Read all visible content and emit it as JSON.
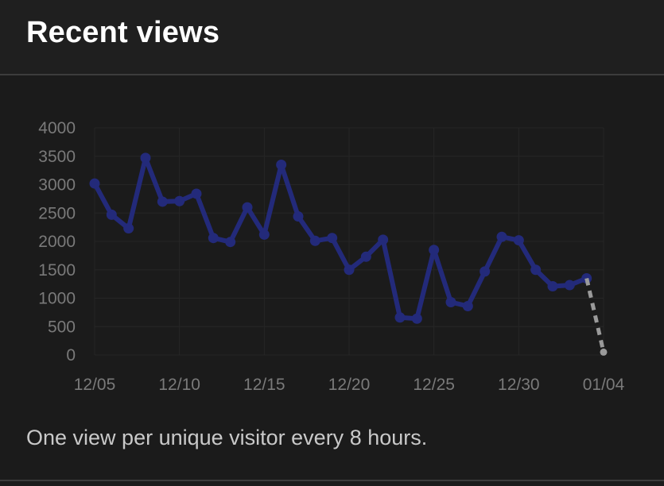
{
  "header": {
    "title": "Recent views"
  },
  "footer": {
    "note": "One view per unique visitor every 8 hours."
  },
  "colors": {
    "line": "#232a7a",
    "projection": "#9a9a9a",
    "axis_text": "#7a7a7a",
    "grid": "#262626"
  },
  "chart_data": {
    "type": "line",
    "title": "",
    "xlabel": "",
    "ylabel": "",
    "ylim": [
      0,
      4000
    ],
    "y_ticks": [
      "0",
      "500",
      "1000",
      "1500",
      "2000",
      "2500",
      "3000",
      "3500",
      "4000"
    ],
    "x_ticks": [
      "12/05",
      "12/10",
      "12/15",
      "12/20",
      "12/25",
      "12/30",
      "01/04"
    ],
    "grid": true,
    "legend": "none",
    "series": [
      {
        "x": [
          "12/05",
          "12/06",
          "12/07",
          "12/08",
          "12/09",
          "12/10",
          "12/11",
          "12/12",
          "12/13",
          "12/14",
          "12/15",
          "12/16",
          "12/17",
          "12/18",
          "12/19",
          "12/20",
          "12/21",
          "12/22",
          "12/23",
          "12/24",
          "12/25",
          "12/26",
          "12/27",
          "12/28",
          "12/29",
          "12/30",
          "12/31",
          "01/01",
          "01/02",
          "01/03"
        ],
        "values": [
          3020,
          2470,
          2230,
          3470,
          2700,
          2710,
          2840,
          2060,
          1990,
          2600,
          2120,
          3350,
          2440,
          2010,
          2060,
          1500,
          1730,
          2030,
          660,
          640,
          1850,
          930,
          860,
          1470,
          2080,
          2020,
          1500,
          1210,
          1230,
          1350
        ]
      },
      {
        "style": "dashed",
        "x": [
          "01/03",
          "01/04"
        ],
        "values": [
          1350,
          50
        ]
      }
    ]
  }
}
